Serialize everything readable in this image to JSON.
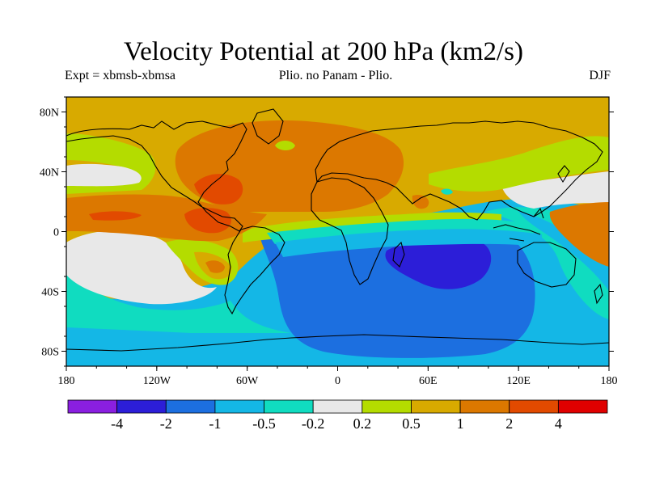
{
  "title": "Velocity Potential at 200 hPa (km2/s)",
  "subtitle_left": "Expt = xbmsb-xbmsa",
  "subtitle_center": "Plio. no Panam - Plio.",
  "subtitle_right": "DJF",
  "map": {
    "lon_ticks": [
      "180",
      "120W",
      "60W",
      "0",
      "60E",
      "120E",
      "180"
    ],
    "lat_ticks": [
      "80N",
      "40N",
      "0",
      "40S",
      "80S"
    ]
  },
  "colorbar": {
    "colors": [
      "#8a1fe0",
      "#2c1ed8",
      "#1c6fe0",
      "#14b7e6",
      "#10dcc0",
      "#e8e8e8",
      "#b4dc00",
      "#d8aa00",
      "#dc7800",
      "#e24a00",
      "#e00000"
    ],
    "labels": [
      "-4",
      "-2",
      "-1",
      "-0.5",
      "-0.2",
      "0.2",
      "0.5",
      "1",
      "2",
      "4"
    ]
  },
  "palette": {
    "neg5": "#2c1ed8",
    "neg4": "#1c6fe0",
    "neg3": "#14b7e6",
    "neg2": "#10dcc0",
    "zero": "#e8e8e8",
    "pos1": "#b4dc00",
    "pos2": "#d8aa00",
    "pos3": "#dc7800",
    "pos4": "#e24a00"
  }
}
